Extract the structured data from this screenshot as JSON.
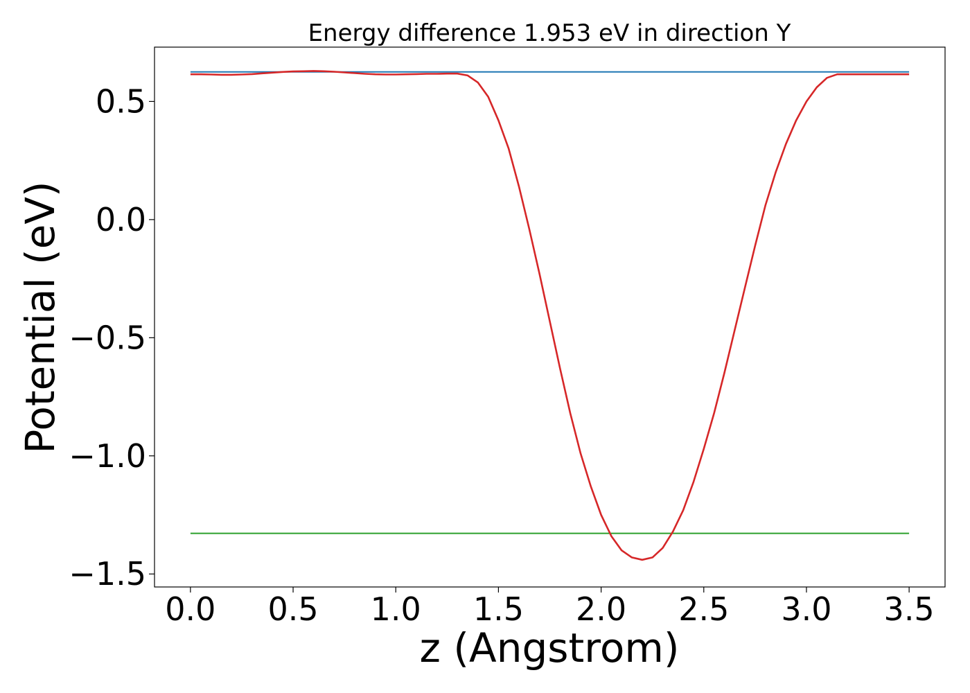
{
  "chart_data": {
    "type": "line",
    "title": "Energy difference 1.953 eV in direction Y",
    "xlabel": "z (Angstrom)",
    "ylabel": "Potential (eV)",
    "xlim": [
      -0.175,
      3.675
    ],
    "ylim": [
      -1.555,
      0.73
    ],
    "xticks": [
      0.0,
      0.5,
      1.0,
      1.5,
      2.0,
      2.5,
      3.0,
      3.5
    ],
    "xtick_labels": [
      "0.0",
      "0.5",
      "1.0",
      "1.5",
      "2.0",
      "2.5",
      "3.0",
      "3.5"
    ],
    "yticks": [
      0.5,
      0.0,
      -0.5,
      -1.0,
      -1.5
    ],
    "ytick_labels": [
      "0.5",
      "0.0",
      "−0.5",
      "−1.0",
      "−1.5"
    ],
    "grid": false,
    "legend": "none",
    "series": [
      {
        "color": "#d62728",
        "x": [
          0.0,
          0.05,
          0.1,
          0.15,
          0.2,
          0.25,
          0.3,
          0.35,
          0.4,
          0.45,
          0.5,
          0.55,
          0.6,
          0.65,
          0.7,
          0.75,
          0.8,
          0.85,
          0.9,
          0.95,
          1.0,
          1.05,
          1.1,
          1.15,
          1.2,
          1.25,
          1.3,
          1.35,
          1.4,
          1.45,
          1.5,
          1.55,
          1.6,
          1.65,
          1.7,
          1.75,
          1.8,
          1.85,
          1.9,
          1.95,
          2.0,
          2.05,
          2.1,
          2.15,
          2.2,
          2.25,
          2.3,
          2.35,
          2.4,
          2.45,
          2.5,
          2.55,
          2.6,
          2.65,
          2.7,
          2.75,
          2.8,
          2.85,
          2.9,
          2.95,
          3.0,
          3.05,
          3.1,
          3.15,
          3.2,
          3.25,
          3.3,
          3.35,
          3.4,
          3.45,
          3.5
        ],
        "y": [
          0.615,
          0.615,
          0.614,
          0.613,
          0.613,
          0.614,
          0.616,
          0.619,
          0.622,
          0.625,
          0.627,
          0.628,
          0.629,
          0.628,
          0.626,
          0.623,
          0.62,
          0.617,
          0.615,
          0.614,
          0.614,
          0.615,
          0.616,
          0.617,
          0.617,
          0.618,
          0.618,
          0.61,
          0.58,
          0.52,
          0.42,
          0.3,
          0.14,
          -0.04,
          -0.23,
          -0.43,
          -0.63,
          -0.82,
          -0.99,
          -1.13,
          -1.25,
          -1.34,
          -1.4,
          -1.43,
          -1.44,
          -1.43,
          -1.39,
          -1.32,
          -1.23,
          -1.11,
          -0.97,
          -0.82,
          -0.65,
          -0.47,
          -0.29,
          -0.11,
          0.06,
          0.2,
          0.32,
          0.42,
          0.5,
          0.56,
          0.6,
          0.615,
          0.615,
          0.615,
          0.615,
          0.615,
          0.615,
          0.615,
          0.615
        ]
      },
      {
        "color": "#1f77b4",
        "x": [
          0.0,
          3.5
        ],
        "y": [
          0.625,
          0.625
        ]
      },
      {
        "color": "#2ca02c",
        "x": [
          0.0,
          3.5
        ],
        "y": [
          -1.328,
          -1.328
        ]
      }
    ]
  }
}
